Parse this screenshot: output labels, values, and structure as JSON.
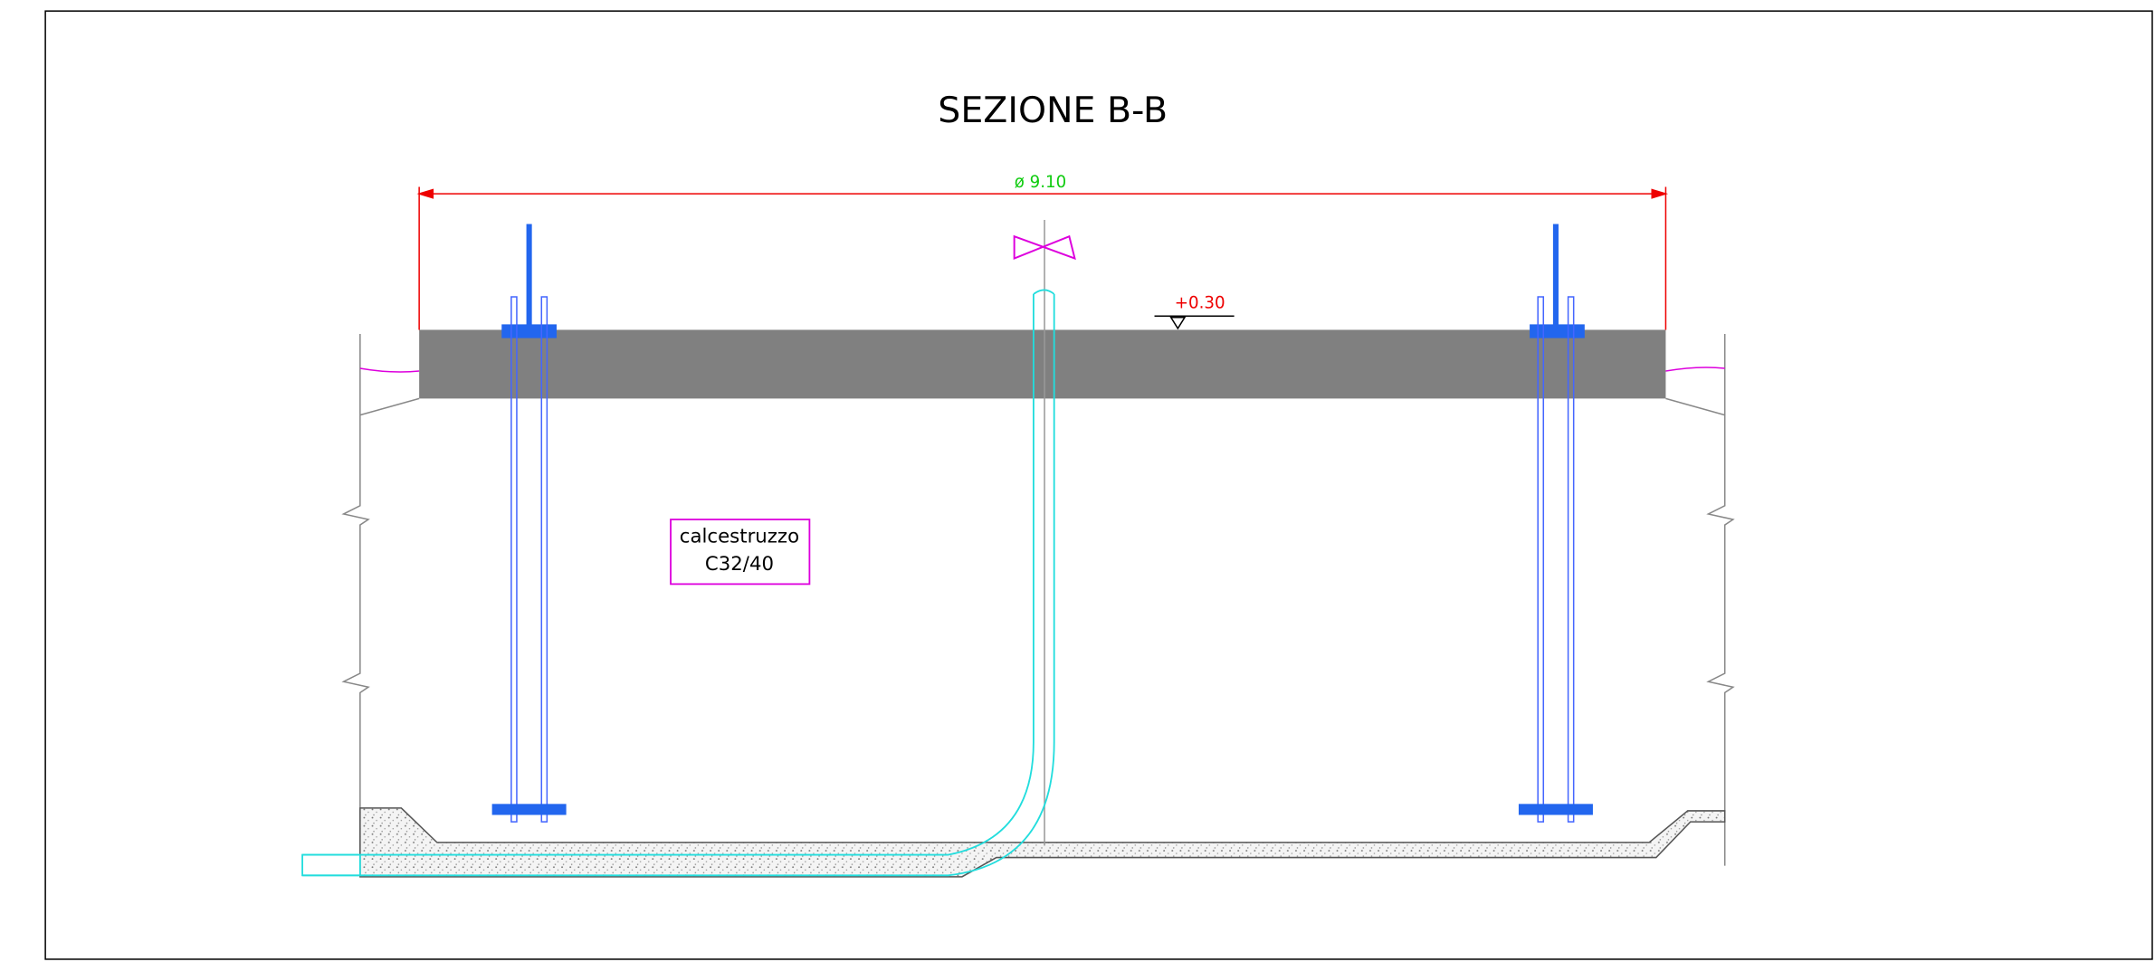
{
  "title": "SEZIONE B-B",
  "dimension": {
    "label": "ø 9.10"
  },
  "elevation": {
    "label": "+0.30"
  },
  "material": {
    "lines": [
      "calcestruzzo",
      "C32/40"
    ]
  }
}
